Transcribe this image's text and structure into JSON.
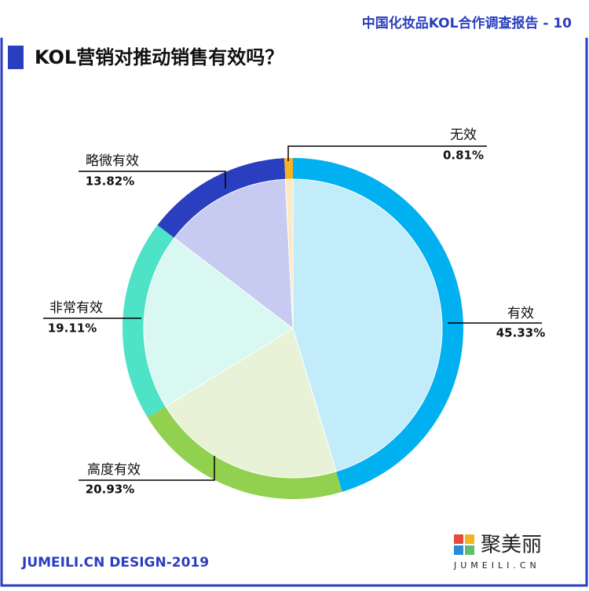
{
  "header": {
    "report": "中国化妆品KOL合作调查报告 - 10"
  },
  "chart_data": {
    "type": "pie",
    "title": "KOL营销对推动销售有效吗？",
    "categories": [
      "有效",
      "高度有效",
      "非常有效",
      "略微有效",
      "无效"
    ],
    "values": [
      45.33,
      20.93,
      19.11,
      13.82,
      0.81
    ],
    "value_labels": [
      "45.33%",
      "20.93%",
      "19.11%",
      "13.82%",
      "0.81%"
    ],
    "colors": [
      "#00b0f0",
      "#92d050",
      "#4ee2c6",
      "#2a3ec0",
      "#f5b324"
    ],
    "inner_colors": [
      "#c2ecf9",
      "#e7f2d6",
      "#d8f8f1",
      "#c8cbf1",
      "#fde8c4"
    ]
  },
  "footer": {
    "credit": "JUMEILI.CN DESIGN-2019",
    "logo": "聚美丽",
    "logo_sub": "JUMEILI.CN"
  }
}
